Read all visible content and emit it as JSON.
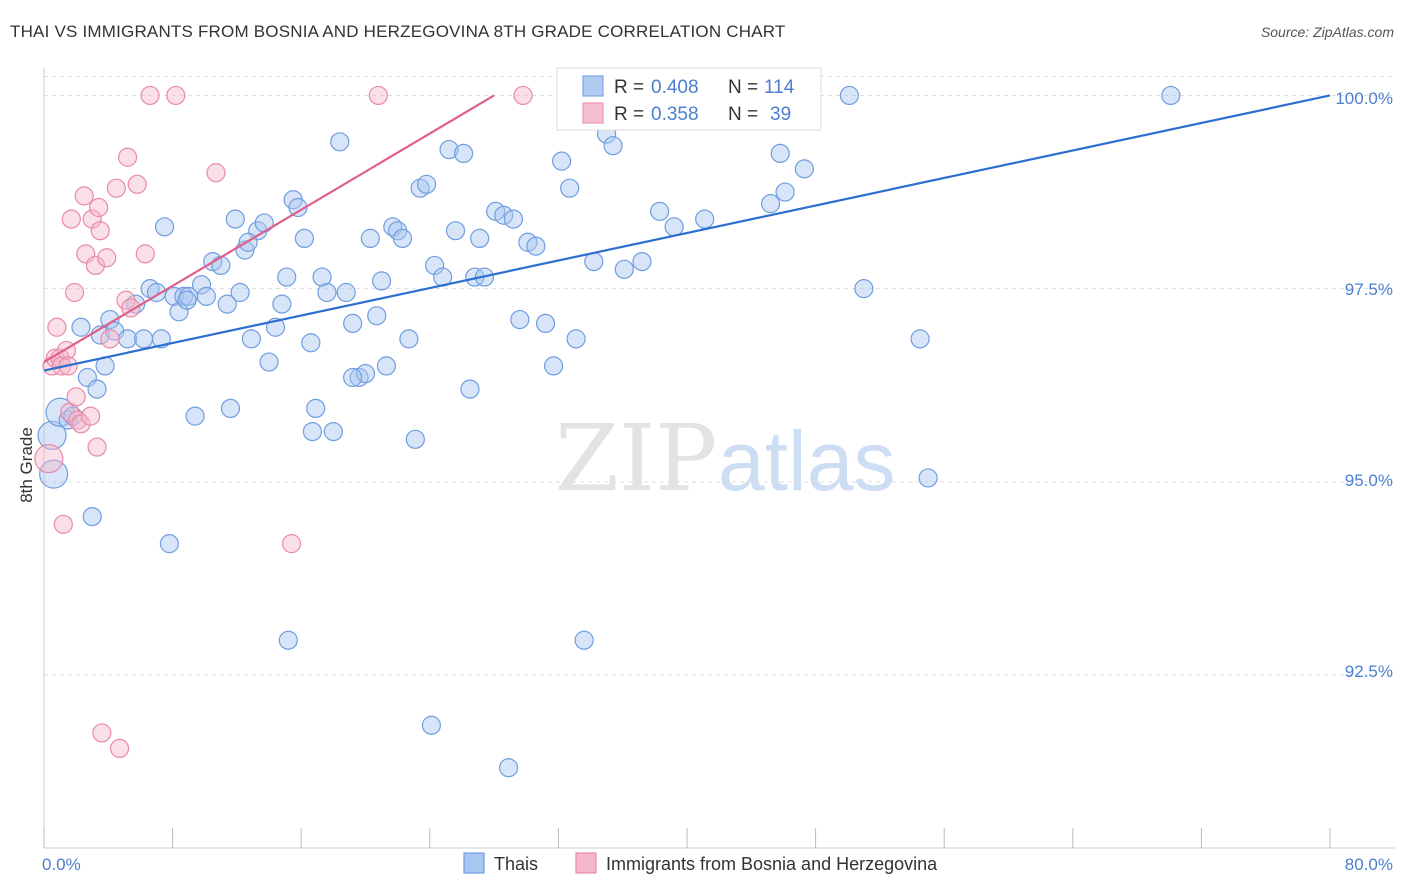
{
  "title": "THAI VS IMMIGRANTS FROM BOSNIA AND HERZEGOVINA 8TH GRADE CORRELATION CHART",
  "source": "Source: ZipAtlas.com",
  "watermark": {
    "zip": "ZIP",
    "atlas": "atlas"
  },
  "colors": {
    "blue_fill": "#a9c6f0",
    "blue_stroke": "#6f9de0",
    "blue_line": "#2d6fd0",
    "pink_fill": "#f5b8cb",
    "pink_stroke": "#e98aa8",
    "pink_line": "#e0608a",
    "tick_text": "#4a7fd0",
    "grid": "#dddddd"
  },
  "legend": {
    "r_label": "R =",
    "n_label": "N =",
    "series": [
      {
        "r": "0.408",
        "n": "114"
      },
      {
        "r": "0.358",
        "n": "39"
      }
    ]
  },
  "chart_data": {
    "type": "scatter",
    "title": "THAI VS IMMIGRANTS FROM BOSNIA AND HERZEGOVINA 8TH GRADE CORRELATION CHART",
    "xlabel": "",
    "ylabel": "8th Grade",
    "xlim": [
      0,
      80
    ],
    "ylim": [
      90.3,
      100.2
    ],
    "x_tick_labels": [
      "0.0%",
      "80.0%"
    ],
    "y_ticks": [
      92.5,
      95.0,
      97.5,
      100.0
    ],
    "y_tick_labels": [
      "92.5%",
      "95.0%",
      "97.5%",
      "100.0%"
    ],
    "grid": true,
    "series": [
      {
        "name": "Thais",
        "color": "blue",
        "trend": {
          "x": [
            0,
            80
          ],
          "y": [
            96.44,
            100.0
          ]
        },
        "points": [
          [
            0.5,
            95.6
          ],
          [
            0.6,
            95.1
          ],
          [
            1.0,
            95.9
          ],
          [
            1.5,
            95.8
          ],
          [
            1.8,
            95.85
          ],
          [
            2.3,
            97.0
          ],
          [
            2.7,
            96.35
          ],
          [
            3.0,
            94.55
          ],
          [
            3.3,
            96.2
          ],
          [
            3.5,
            96.9
          ],
          [
            3.8,
            96.5
          ],
          [
            4.1,
            97.1
          ],
          [
            4.4,
            96.95
          ],
          [
            5.2,
            96.85
          ],
          [
            5.7,
            97.3
          ],
          [
            6.2,
            96.85
          ],
          [
            6.6,
            97.5
          ],
          [
            7.0,
            97.45
          ],
          [
            7.3,
            96.85
          ],
          [
            7.5,
            98.3
          ],
          [
            7.8,
            94.2
          ],
          [
            8.1,
            97.4
          ],
          [
            8.4,
            97.2
          ],
          [
            8.7,
            97.4
          ],
          [
            9.0,
            97.4
          ],
          [
            9.4,
            95.85
          ],
          [
            9.8,
            97.55
          ],
          [
            10.1,
            97.4
          ],
          [
            10.5,
            97.85
          ],
          [
            11.0,
            97.8
          ],
          [
            11.4,
            97.3
          ],
          [
            11.9,
            98.4
          ],
          [
            12.2,
            97.45
          ],
          [
            12.5,
            98.0
          ],
          [
            12.9,
            96.85
          ],
          [
            13.3,
            98.25
          ],
          [
            13.7,
            98.35
          ],
          [
            14.0,
            96.55
          ],
          [
            14.4,
            97.0
          ],
          [
            14.8,
            97.3
          ],
          [
            15.1,
            97.65
          ],
          [
            15.5,
            98.65
          ],
          [
            15.8,
            98.55
          ],
          [
            16.2,
            98.15
          ],
          [
            16.6,
            96.8
          ],
          [
            16.9,
            95.95
          ],
          [
            17.3,
            97.65
          ],
          [
            17.6,
            97.45
          ],
          [
            18.0,
            95.65
          ],
          [
            18.4,
            99.4
          ],
          [
            18.8,
            97.45
          ],
          [
            19.2,
            97.05
          ],
          [
            19.6,
            96.35
          ],
          [
            20.0,
            96.4
          ],
          [
            20.3,
            98.15
          ],
          [
            20.7,
            97.15
          ],
          [
            21.0,
            97.6
          ],
          [
            21.3,
            96.5
          ],
          [
            21.7,
            98.3
          ],
          [
            22.0,
            98.25
          ],
          [
            22.3,
            98.15
          ],
          [
            22.7,
            96.85
          ],
          [
            23.1,
            95.55
          ],
          [
            23.4,
            98.8
          ],
          [
            23.8,
            98.85
          ],
          [
            24.3,
            97.8
          ],
          [
            24.8,
            97.65
          ],
          [
            25.2,
            99.3
          ],
          [
            25.6,
            98.25
          ],
          [
            26.1,
            99.25
          ],
          [
            26.5,
            96.2
          ],
          [
            26.8,
            97.65
          ],
          [
            27.1,
            98.15
          ],
          [
            27.4,
            97.65
          ],
          [
            28.1,
            98.5
          ],
          [
            28.6,
            98.45
          ],
          [
            29.2,
            98.4
          ],
          [
            29.6,
            97.1
          ],
          [
            30.1,
            98.1
          ],
          [
            30.6,
            98.05
          ],
          [
            31.2,
            97.05
          ],
          [
            31.7,
            96.5
          ],
          [
            32.2,
            99.15
          ],
          [
            32.7,
            98.8
          ],
          [
            33.1,
            96.85
          ],
          [
            33.6,
            92.95
          ],
          [
            34.2,
            97.85
          ],
          [
            35.0,
            99.5
          ],
          [
            35.4,
            99.35
          ],
          [
            36.1,
            97.75
          ],
          [
            37.2,
            97.85
          ],
          [
            38.3,
            98.5
          ],
          [
            39.2,
            98.3
          ],
          [
            41.1,
            98.4
          ],
          [
            45.2,
            98.6
          ],
          [
            45.8,
            99.25
          ],
          [
            46.1,
            98.75
          ],
          [
            47.3,
            99.05
          ],
          [
            50.1,
            100.0
          ],
          [
            51.0,
            97.5
          ],
          [
            54.5,
            96.85
          ],
          [
            55.0,
            95.05
          ],
          [
            70.1,
            100.0
          ],
          [
            16.7,
            95.65
          ],
          [
            11.6,
            95.95
          ],
          [
            15.2,
            92.95
          ],
          [
            24.1,
            91.85
          ],
          [
            28.9,
            91.3
          ],
          [
            19.2,
            96.35
          ],
          [
            12.7,
            98.1
          ],
          [
            8.9,
            97.35
          ]
        ]
      },
      {
        "name": "Immigrants from Bosnia and Herzegovina",
        "color": "pink",
        "trend": {
          "x": [
            0,
            28
          ],
          "y": [
            96.55,
            100.0
          ]
        },
        "points": [
          [
            0.3,
            95.3
          ],
          [
            0.5,
            96.5
          ],
          [
            0.7,
            96.6
          ],
          [
            0.8,
            97.0
          ],
          [
            1.0,
            96.6
          ],
          [
            1.1,
            96.5
          ],
          [
            1.2,
            94.45
          ],
          [
            1.4,
            96.7
          ],
          [
            1.5,
            96.5
          ],
          [
            1.6,
            95.9
          ],
          [
            1.7,
            98.4
          ],
          [
            1.9,
            97.45
          ],
          [
            2.0,
            96.1
          ],
          [
            2.1,
            95.8
          ],
          [
            2.3,
            95.75
          ],
          [
            2.5,
            98.7
          ],
          [
            2.6,
            97.95
          ],
          [
            2.9,
            95.85
          ],
          [
            3.0,
            98.4
          ],
          [
            3.2,
            97.8
          ],
          [
            3.3,
            95.45
          ],
          [
            3.4,
            98.55
          ],
          [
            3.5,
            98.25
          ],
          [
            3.6,
            91.75
          ],
          [
            3.9,
            97.9
          ],
          [
            4.1,
            96.85
          ],
          [
            4.5,
            98.8
          ],
          [
            4.7,
            91.55
          ],
          [
            5.1,
            97.35
          ],
          [
            5.2,
            99.2
          ],
          [
            5.4,
            97.25
          ],
          [
            5.8,
            98.85
          ],
          [
            6.3,
            97.95
          ],
          [
            6.6,
            100.0
          ],
          [
            8.2,
            100.0
          ],
          [
            10.7,
            99.0
          ],
          [
            15.4,
            94.2
          ],
          [
            20.8,
            100.0
          ],
          [
            29.8,
            100.0
          ]
        ]
      }
    ]
  }
}
